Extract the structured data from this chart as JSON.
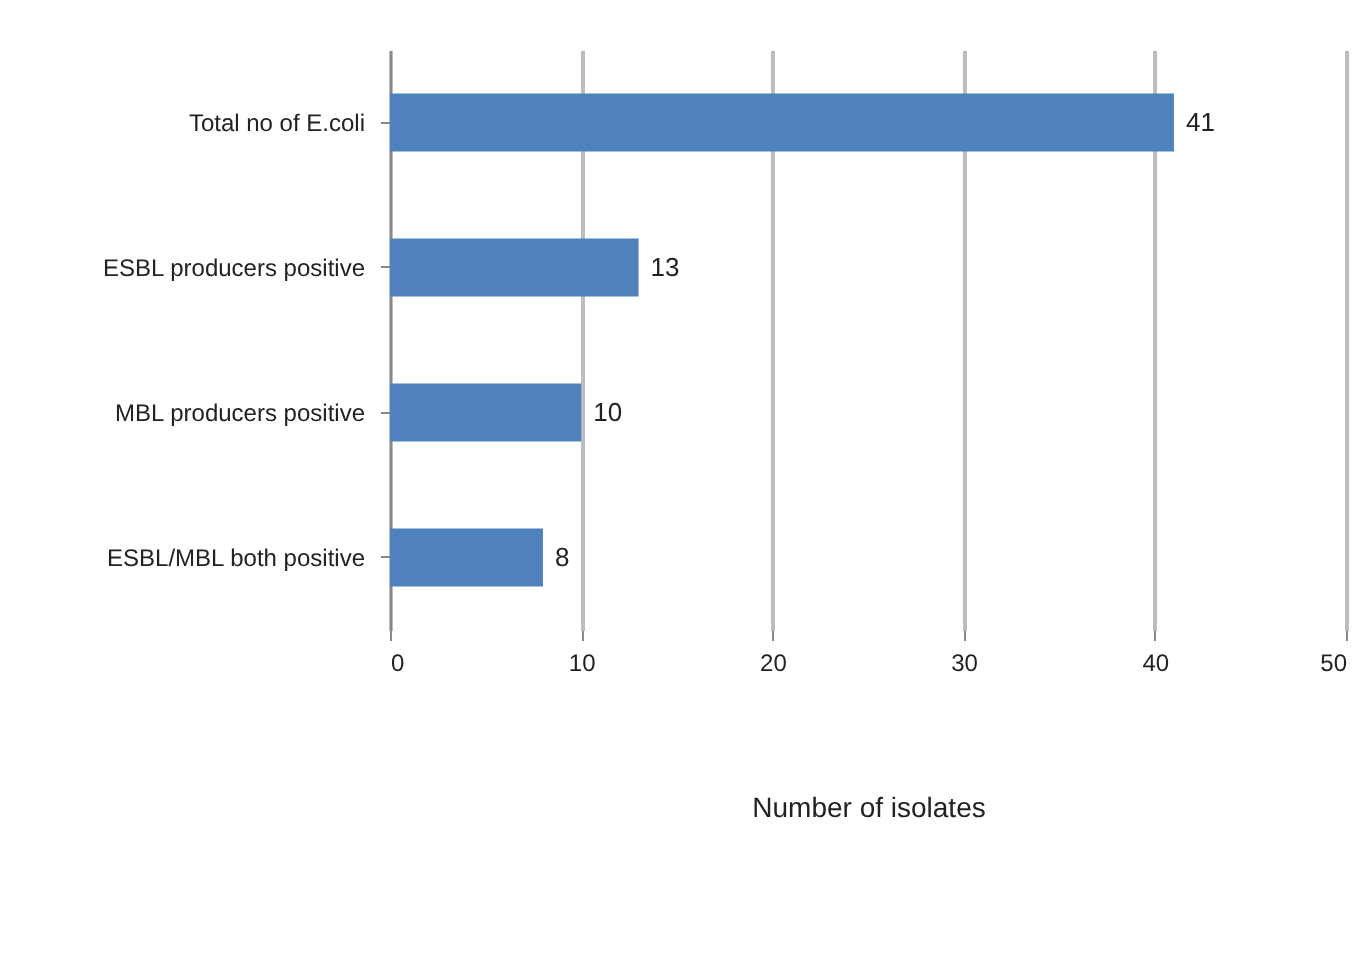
{
  "chart_data": {
    "type": "bar",
    "orientation": "horizontal",
    "xlabel": "Number of isolates",
    "categories": [
      "Total no of E.coli",
      "ESBL producers positive",
      "MBL producers positive",
      "ESBL/MBL both positive"
    ],
    "values": [
      41,
      13,
      10,
      8
    ],
    "color": "#4f81bd",
    "xlim": [
      0,
      50
    ],
    "xticks": [
      0,
      10,
      20,
      30,
      40,
      50
    ],
    "grid": "x",
    "data_labels": true
  }
}
